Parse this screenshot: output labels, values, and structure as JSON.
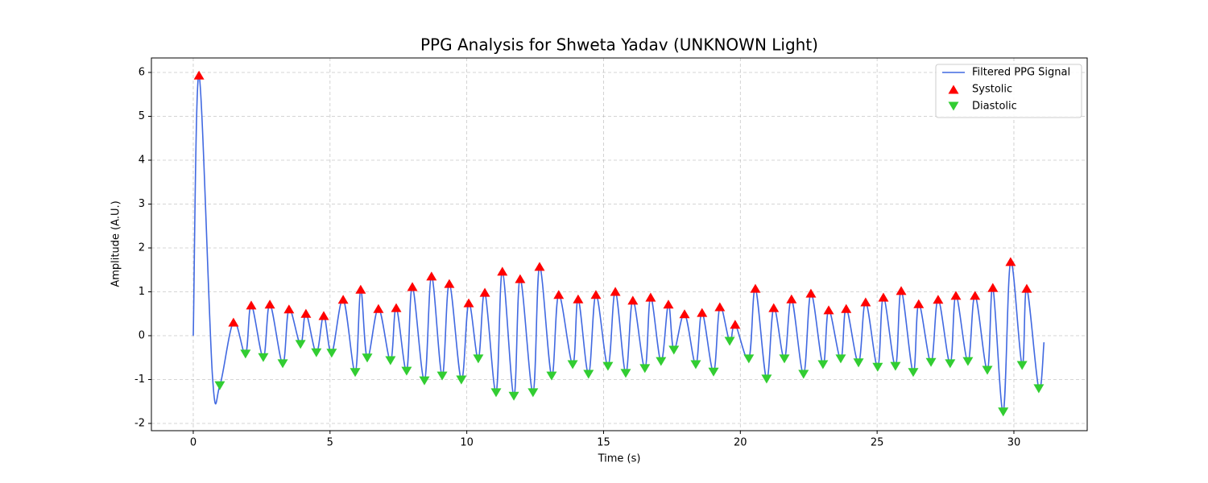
{
  "chart_data": {
    "type": "line",
    "title": "PPG Analysis for Shweta Yadav (UNKNOWN Light)",
    "x_label": "Time (s)",
    "y_label": "Amplitude (A.U.)",
    "xlim": [
      -1.53,
      32.68
    ],
    "ylim": [
      -2.165,
      6.33
    ],
    "xticks": [
      0,
      5,
      10,
      15,
      20,
      25,
      30
    ],
    "yticks": [
      -2,
      -1,
      0,
      1,
      2,
      3,
      4,
      5,
      6
    ],
    "grid": true,
    "legend": "upper right",
    "series": [
      {
        "name": "Filtered PPG Signal",
        "type": "line",
        "color": "#4169e1",
        "x": [
          0,
          0.21,
          0.7,
          0.97,
          1.47,
          1.91,
          2.12,
          2.56,
          2.8,
          3.27,
          3.5,
          3.92,
          4.12,
          4.5,
          4.77,
          5.06,
          5.48,
          5.92,
          6.12,
          6.36,
          6.77,
          7.21,
          7.42,
          7.8,
          8.01,
          8.45,
          8.71,
          9.1,
          9.36,
          9.8,
          10.07,
          10.42,
          10.66,
          11.07,
          11.3,
          11.72,
          11.95,
          12.42,
          12.66,
          13.1,
          13.36,
          13.87,
          14.07,
          14.45,
          14.72,
          15.16,
          15.43,
          15.81,
          16.07,
          16.51,
          16.72,
          17.1,
          17.37,
          17.57,
          17.96,
          18.37,
          18.6,
          19.02,
          19.25,
          19.61,
          19.81,
          20.31,
          20.55,
          20.96,
          21.22,
          21.61,
          21.87,
          22.31,
          22.58,
          23.02,
          23.23,
          23.67,
          23.87,
          24.32,
          24.58,
          25.02,
          25.23,
          25.67,
          25.88,
          26.32,
          26.52,
          26.97,
          27.23,
          27.67,
          27.88,
          28.32,
          28.58,
          29.03,
          29.23,
          29.61,
          29.88,
          30.3,
          30.47,
          30.91,
          31.1
        ],
        "values": [
          0,
          5.94,
          -0.9,
          -1.14,
          0.31,
          -0.42,
          0.7,
          -0.5,
          0.72,
          -0.64,
          0.61,
          -0.2,
          0.51,
          -0.39,
          0.46,
          -0.4,
          0.83,
          -0.84,
          1.06,
          -0.51,
          0.62,
          -0.57,
          0.64,
          -0.81,
          1.12,
          -1.03,
          1.36,
          -0.92,
          1.19,
          -1.01,
          0.75,
          -0.53,
          0.99,
          -1.3,
          1.47,
          -1.38,
          1.3,
          -1.3,
          1.58,
          -0.92,
          0.94,
          -0.66,
          0.84,
          -0.88,
          0.94,
          -0.7,
          1.01,
          -0.86,
          0.81,
          -0.75,
          0.88,
          -0.59,
          0.72,
          -0.33,
          0.5,
          -0.66,
          0.53,
          -0.83,
          0.66,
          -0.13,
          0.26,
          -0.53,
          1.08,
          -0.99,
          0.64,
          -0.53,
          0.84,
          -0.88,
          0.97,
          -0.66,
          0.59,
          -0.53,
          0.62,
          -0.62,
          0.77,
          -0.72,
          0.88,
          -0.7,
          1.03,
          -0.84,
          0.73,
          -0.61,
          0.83,
          -0.64,
          0.92,
          -0.59,
          0.92,
          -0.79,
          1.1,
          -1.74,
          1.69,
          -0.68,
          1.08,
          -1.21,
          -0.15
        ]
      },
      {
        "name": "Systolic",
        "type": "scatter",
        "marker": "up",
        "color": "#ff0000",
        "x": [
          0.21,
          1.47,
          2.12,
          2.8,
          3.5,
          4.12,
          4.77,
          5.48,
          6.12,
          6.77,
          7.42,
          8.01,
          8.71,
          9.36,
          10.07,
          10.66,
          11.3,
          11.95,
          12.66,
          13.36,
          14.07,
          14.72,
          15.43,
          16.07,
          16.72,
          17.37,
          17.96,
          18.6,
          19.25,
          19.81,
          20.55,
          21.22,
          21.87,
          22.58,
          23.23,
          23.87,
          24.58,
          25.23,
          25.88,
          26.52,
          27.23,
          27.88,
          28.58,
          29.23,
          29.88,
          30.47
        ],
        "values": [
          5.94,
          0.31,
          0.7,
          0.72,
          0.61,
          0.51,
          0.46,
          0.83,
          1.06,
          0.62,
          0.64,
          1.12,
          1.36,
          1.19,
          0.75,
          0.99,
          1.47,
          1.3,
          1.58,
          0.94,
          0.84,
          0.94,
          1.01,
          0.81,
          0.88,
          0.72,
          0.5,
          0.53,
          0.66,
          0.26,
          1.08,
          0.64,
          0.84,
          0.97,
          0.59,
          0.62,
          0.77,
          0.88,
          1.03,
          0.73,
          0.83,
          0.92,
          0.92,
          1.1,
          1.69,
          1.08
        ]
      },
      {
        "name": "Diastolic",
        "type": "scatter",
        "marker": "down",
        "color": "#32cd32",
        "x": [
          0.97,
          1.91,
          2.56,
          3.27,
          3.92,
          4.5,
          5.06,
          5.92,
          6.36,
          7.21,
          7.8,
          8.45,
          9.1,
          9.8,
          10.42,
          11.07,
          11.72,
          12.42,
          13.1,
          13.87,
          14.45,
          15.16,
          15.81,
          16.51,
          17.1,
          17.57,
          18.37,
          19.02,
          19.61,
          20.31,
          20.96,
          21.61,
          22.31,
          23.02,
          23.67,
          24.32,
          25.02,
          25.67,
          26.32,
          26.97,
          27.67,
          28.32,
          29.03,
          29.61,
          30.3,
          30.91
        ],
        "values": [
          -1.14,
          -0.42,
          -0.5,
          -0.64,
          -0.2,
          -0.39,
          -0.4,
          -0.84,
          -0.51,
          -0.57,
          -0.81,
          -1.03,
          -0.92,
          -1.01,
          -0.53,
          -1.3,
          -1.38,
          -1.3,
          -0.92,
          -0.66,
          -0.88,
          -0.7,
          -0.86,
          -0.75,
          -0.59,
          -0.33,
          -0.66,
          -0.83,
          -0.13,
          -0.53,
          -0.99,
          -0.53,
          -0.88,
          -0.66,
          -0.53,
          -0.62,
          -0.72,
          -0.7,
          -0.84,
          -0.61,
          -0.64,
          -0.59,
          -0.79,
          -1.74,
          -0.68,
          -1.21
        ]
      }
    ]
  }
}
